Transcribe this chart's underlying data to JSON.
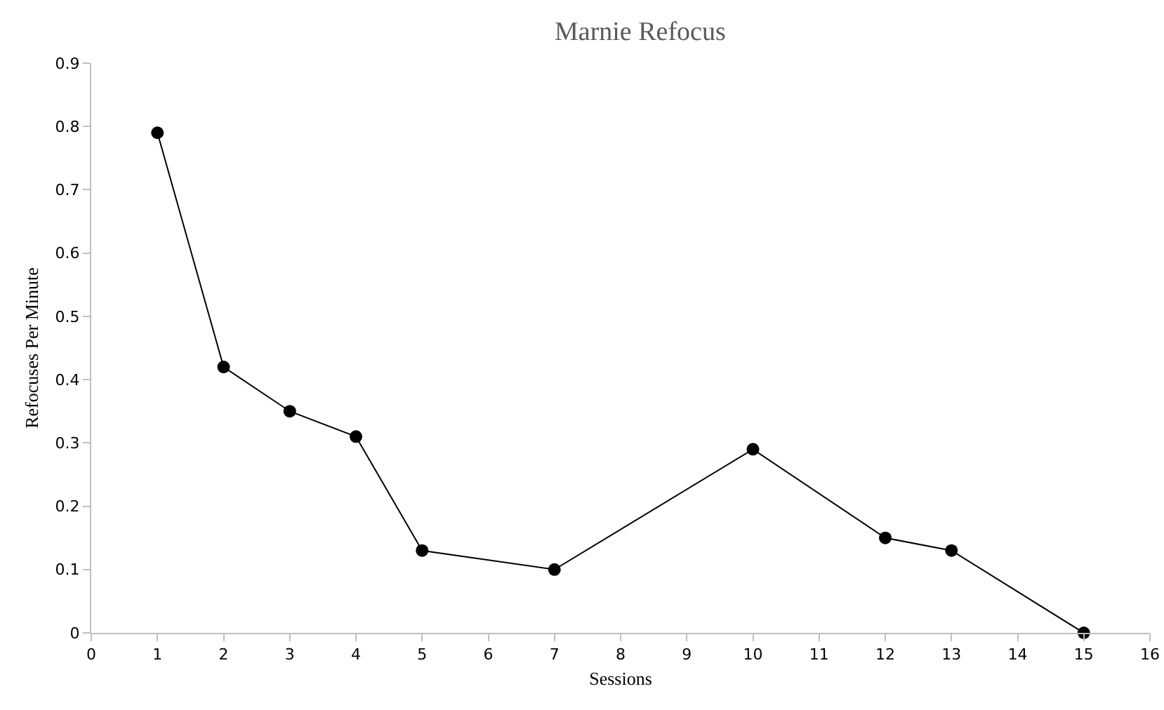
{
  "chart_data": {
    "type": "line",
    "title": "Marnie Refocus",
    "xlabel": "Sessions",
    "ylabel": "Refocuses Per Minute",
    "x": [
      1,
      2,
      3,
      4,
      5,
      7,
      10,
      12,
      13,
      15
    ],
    "series": [
      {
        "color": "#000000",
        "values": [
          0.79,
          0.42,
          0.35,
          0.31,
          0.13,
          0.1,
          0.29,
          0.15,
          0.13,
          0
        ]
      }
    ],
    "xlim": [
      0,
      16
    ],
    "xticks": [
      0,
      1,
      2,
      3,
      4,
      5,
      6,
      7,
      8,
      9,
      10,
      11,
      12,
      13,
      14,
      15,
      16
    ],
    "ylim": [
      0,
      0.9
    ],
    "yticks": [
      0,
      0.1,
      0.2,
      0.3,
      0.4,
      0.5,
      0.6,
      0.7,
      0.8,
      0.9
    ],
    "grid": false,
    "marker": "circle",
    "line_style": "solid"
  }
}
